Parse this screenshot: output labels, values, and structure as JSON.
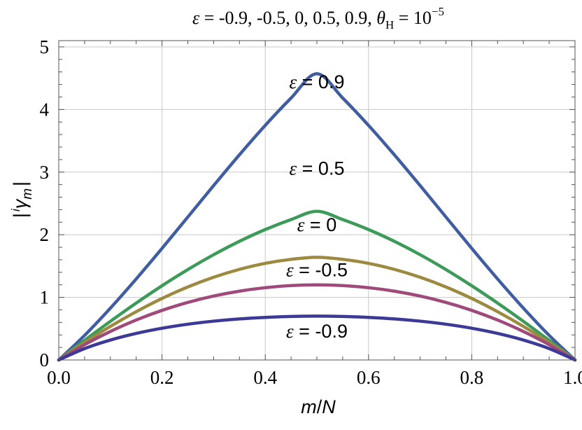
{
  "chart_data": {
    "type": "line",
    "title": {
      "parts": [
        "ε",
        " = -0.9, -0.5, 0, 0.5, 0.9, ",
        "θ",
        "H",
        " = 10",
        "−5"
      ]
    },
    "xlabel": {
      "parts": [
        "m",
        "/",
        "N"
      ]
    },
    "ylabel": {
      "parts": [
        "|",
        "i",
        "γ",
        "m",
        "|"
      ]
    },
    "xlim": [
      0,
      1
    ],
    "ylim": [
      0,
      5.1
    ],
    "x_ticks": [
      0,
      0.2,
      0.4,
      0.6,
      0.8,
      1.0
    ],
    "x_tick_labels": [
      "0.0",
      "0.2",
      "0.4",
      "0.6",
      "0.8",
      "1.0"
    ],
    "x_minor_step": 0.05,
    "y_ticks": [
      0,
      1,
      2,
      3,
      4,
      5
    ],
    "y_tick_labels": [
      "0",
      "1",
      "2",
      "3",
      "4",
      "5"
    ],
    "y_minor_step": 0.2,
    "grid": true,
    "x": [
      0.0,
      0.05,
      0.1,
      0.15,
      0.2,
      0.25,
      0.3,
      0.35,
      0.4,
      0.45,
      0.5,
      0.55,
      0.6,
      0.65,
      0.7,
      0.75,
      0.8,
      0.85,
      0.9,
      0.95,
      1.0
    ],
    "series": [
      {
        "eps_label": "0.9",
        "color": "#3f5da0",
        "label_at": [
          0.5,
          4.45
        ],
        "values": [
          0.0,
          0.392,
          0.828,
          1.294,
          1.782,
          2.283,
          2.785,
          3.277,
          3.747,
          4.183,
          4.572,
          4.183,
          3.747,
          3.277,
          2.785,
          2.283,
          1.782,
          1.294,
          0.828,
          0.392,
          0.0
        ]
      },
      {
        "eps_label": "0.5",
        "color": "#3d9b5a",
        "label_at": [
          0.5,
          3.07
        ],
        "values": [
          0.0,
          0.313,
          0.617,
          0.909,
          1.185,
          1.444,
          1.681,
          1.895,
          2.083,
          2.243,
          2.374,
          2.243,
          2.083,
          1.895,
          1.681,
          1.444,
          1.185,
          0.909,
          0.617,
          0.313,
          0.0
        ]
      },
      {
        "eps_label": "0",
        "color": "#9c8a40",
        "label_at": [
          0.5,
          2.17
        ],
        "values": [
          0.0,
          0.278,
          0.536,
          0.771,
          0.982,
          1.166,
          1.321,
          1.447,
          1.543,
          1.607,
          1.64,
          1.607,
          1.543,
          1.447,
          1.321,
          1.166,
          0.982,
          0.771,
          0.536,
          0.278,
          0.0
        ]
      },
      {
        "eps_label": "-0.5",
        "color": "#a04a7c",
        "label_at": [
          0.5,
          1.45
        ],
        "values": [
          0.0,
          0.244,
          0.455,
          0.638,
          0.792,
          0.919,
          1.021,
          1.099,
          1.154,
          1.188,
          1.199,
          1.188,
          1.154,
          1.099,
          1.021,
          0.919,
          0.792,
          0.638,
          0.455,
          0.244,
          0.0
        ]
      },
      {
        "eps_label": "-0.9",
        "color": "#3c3a96",
        "label_at": [
          0.5,
          0.47
        ],
        "values": [
          0.0,
          0.182,
          0.318,
          0.424,
          0.507,
          0.571,
          0.62,
          0.656,
          0.68,
          0.695,
          0.7,
          0.695,
          0.68,
          0.656,
          0.62,
          0.571,
          0.507,
          0.424,
          0.318,
          0.182,
          0.0
        ]
      }
    ],
    "series_label_prefix": {
      "symbol": "ε",
      "eq": " = "
    }
  }
}
